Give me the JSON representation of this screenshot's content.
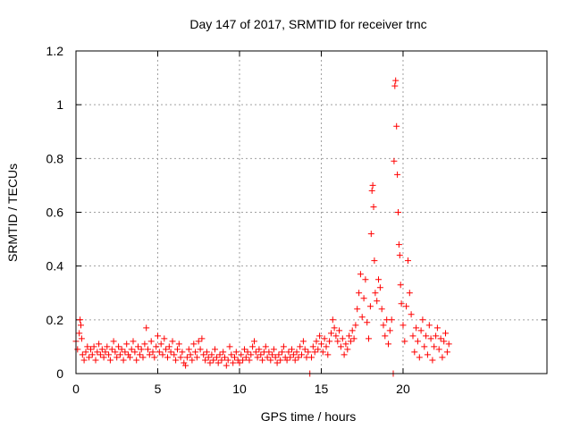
{
  "chart_data": {
    "type": "scatter",
    "title": "Day 147 of 2017, SRMTID for receiver trnc",
    "xlabel": "GPS time / hours",
    "ylabel": "SRMTID / TECUs",
    "xlim": [
      0,
      28.8
    ],
    "ylim": [
      0,
      1.2
    ],
    "xticks": [
      0,
      5,
      10,
      15,
      20
    ],
    "xtick_labels": [
      "0",
      "5",
      "10",
      "15",
      "20"
    ],
    "yticks": [
      0,
      0.2,
      0.4,
      0.6,
      0.8,
      1.0,
      1.2
    ],
    "ytick_labels": [
      "0",
      "0.2",
      "0.4",
      "0.6",
      "0.8",
      "1",
      "1.2"
    ],
    "grid": true,
    "legend": "none",
    "marker": "+",
    "color": "#ff0000",
    "series": [
      {
        "name": "SRMTID",
        "points": [
          [
            0.0,
            0.12
          ],
          [
            0.1,
            0.09
          ],
          [
            0.2,
            0.15
          ],
          [
            0.25,
            0.2
          ],
          [
            0.3,
            0.18
          ],
          [
            0.35,
            0.13
          ],
          [
            0.4,
            0.07
          ],
          [
            0.5,
            0.05
          ],
          [
            0.6,
            0.08
          ],
          [
            0.7,
            0.1
          ],
          [
            0.8,
            0.06
          ],
          [
            0.9,
            0.09
          ],
          [
            1.0,
            0.07
          ],
          [
            1.1,
            0.1
          ],
          [
            1.2,
            0.05
          ],
          [
            1.3,
            0.08
          ],
          [
            1.4,
            0.11
          ],
          [
            1.5,
            0.07
          ],
          [
            1.6,
            0.09
          ],
          [
            1.7,
            0.06
          ],
          [
            1.8,
            0.08
          ],
          [
            1.9,
            0.1
          ],
          [
            2.0,
            0.07
          ],
          [
            2.1,
            0.05
          ],
          [
            2.2,
            0.09
          ],
          [
            2.3,
            0.12
          ],
          [
            2.4,
            0.08
          ],
          [
            2.5,
            0.06
          ],
          [
            2.6,
            0.1
          ],
          [
            2.7,
            0.07
          ],
          [
            2.8,
            0.09
          ],
          [
            2.9,
            0.05
          ],
          [
            3.0,
            0.08
          ],
          [
            3.1,
            0.11
          ],
          [
            3.2,
            0.07
          ],
          [
            3.3,
            0.06
          ],
          [
            3.4,
            0.09
          ],
          [
            3.5,
            0.12
          ],
          [
            3.6,
            0.08
          ],
          [
            3.7,
            0.05
          ],
          [
            3.8,
            0.1
          ],
          [
            3.9,
            0.07
          ],
          [
            4.0,
            0.09
          ],
          [
            4.1,
            0.06
          ],
          [
            4.2,
            0.11
          ],
          [
            4.3,
            0.17
          ],
          [
            4.4,
            0.09
          ],
          [
            4.5,
            0.07
          ],
          [
            4.6,
            0.12
          ],
          [
            4.7,
            0.08
          ],
          [
            4.8,
            0.06
          ],
          [
            4.9,
            0.1
          ],
          [
            5.0,
            0.14
          ],
          [
            5.1,
            0.08
          ],
          [
            5.2,
            0.11
          ],
          [
            5.3,
            0.07
          ],
          [
            5.4,
            0.13
          ],
          [
            5.5,
            0.09
          ],
          [
            5.6,
            0.06
          ],
          [
            5.7,
            0.1
          ],
          [
            5.8,
            0.08
          ],
          [
            5.9,
            0.12
          ],
          [
            6.0,
            0.07
          ],
          [
            6.1,
            0.05
          ],
          [
            6.2,
            0.09
          ],
          [
            6.3,
            0.11
          ],
          [
            6.4,
            0.06
          ],
          [
            6.5,
            0.08
          ],
          [
            6.6,
            0.04
          ],
          [
            6.7,
            0.03
          ],
          [
            6.8,
            0.06
          ],
          [
            6.9,
            0.09
          ],
          [
            7.0,
            0.07
          ],
          [
            7.1,
            0.05
          ],
          [
            7.2,
            0.11
          ],
          [
            7.3,
            0.08
          ],
          [
            7.4,
            0.06
          ],
          [
            7.5,
            0.12
          ],
          [
            7.6,
            0.09
          ],
          [
            7.7,
            0.13
          ],
          [
            7.8,
            0.07
          ],
          [
            7.9,
            0.05
          ],
          [
            8.0,
            0.08
          ],
          [
            8.1,
            0.06
          ],
          [
            8.2,
            0.04
          ],
          [
            8.3,
            0.07
          ],
          [
            8.4,
            0.05
          ],
          [
            8.5,
            0.09
          ],
          [
            8.6,
            0.06
          ],
          [
            8.7,
            0.04
          ],
          [
            8.8,
            0.07
          ],
          [
            8.9,
            0.05
          ],
          [
            9.0,
            0.08
          ],
          [
            9.1,
            0.06
          ],
          [
            9.2,
            0.03
          ],
          [
            9.3,
            0.05
          ],
          [
            9.4,
            0.1
          ],
          [
            9.5,
            0.07
          ],
          [
            9.6,
            0.04
          ],
          [
            9.7,
            0.06
          ],
          [
            9.8,
            0.08
          ],
          [
            9.9,
            0.05
          ],
          [
            10.0,
            0.04
          ],
          [
            10.1,
            0.07
          ],
          [
            10.2,
            0.05
          ],
          [
            10.3,
            0.09
          ],
          [
            10.4,
            0.06
          ],
          [
            10.5,
            0.08
          ],
          [
            10.6,
            0.05
          ],
          [
            10.7,
            0.07
          ],
          [
            10.8,
            0.1
          ],
          [
            10.9,
            0.12
          ],
          [
            11.0,
            0.08
          ],
          [
            11.1,
            0.06
          ],
          [
            11.2,
            0.09
          ],
          [
            11.3,
            0.07
          ],
          [
            11.4,
            0.05
          ],
          [
            11.5,
            0.08
          ],
          [
            11.6,
            0.1
          ],
          [
            11.7,
            0.06
          ],
          [
            11.8,
            0.08
          ],
          [
            11.9,
            0.05
          ],
          [
            12.0,
            0.07
          ],
          [
            12.1,
            0.09
          ],
          [
            12.2,
            0.06
          ],
          [
            12.3,
            0.04
          ],
          [
            12.4,
            0.07
          ],
          [
            12.5,
            0.05
          ],
          [
            12.6,
            0.08
          ],
          [
            12.7,
            0.1
          ],
          [
            12.8,
            0.06
          ],
          [
            12.9,
            0.05
          ],
          [
            13.0,
            0.08
          ],
          [
            13.1,
            0.06
          ],
          [
            13.2,
            0.09
          ],
          [
            13.3,
            0.07
          ],
          [
            13.4,
            0.05
          ],
          [
            13.5,
            0.08
          ],
          [
            13.6,
            0.06
          ],
          [
            13.7,
            0.1
          ],
          [
            13.8,
            0.07
          ],
          [
            13.9,
            0.12
          ],
          [
            14.0,
            0.09
          ],
          [
            14.1,
            0.06
          ],
          [
            14.2,
            0.08
          ],
          [
            14.3,
            0.0
          ],
          [
            14.4,
            0.06
          ],
          [
            14.5,
            0.1
          ],
          [
            14.6,
            0.08
          ],
          [
            14.7,
            0.12
          ],
          [
            14.8,
            0.09
          ],
          [
            14.9,
            0.14
          ],
          [
            15.0,
            0.11
          ],
          [
            15.1,
            0.08
          ],
          [
            15.2,
            0.13
          ],
          [
            15.3,
            0.1
          ],
          [
            15.4,
            0.07
          ],
          [
            15.5,
            0.12
          ],
          [
            15.6,
            0.15
          ],
          [
            15.7,
            0.2
          ],
          [
            15.8,
            0.17
          ],
          [
            15.9,
            0.14
          ],
          [
            16.0,
            0.12
          ],
          [
            16.1,
            0.16
          ],
          [
            16.2,
            0.1
          ],
          [
            16.3,
            0.13
          ],
          [
            16.4,
            0.07
          ],
          [
            16.5,
            0.11
          ],
          [
            16.6,
            0.09
          ],
          [
            16.7,
            0.14
          ],
          [
            16.8,
            0.12
          ],
          [
            16.9,
            0.16
          ],
          [
            17.0,
            0.13
          ],
          [
            17.1,
            0.18
          ],
          [
            17.2,
            0.24
          ],
          [
            17.3,
            0.3
          ],
          [
            17.4,
            0.37
          ],
          [
            17.5,
            0.21
          ],
          [
            17.6,
            0.28
          ],
          [
            17.7,
            0.35
          ],
          [
            17.8,
            0.19
          ],
          [
            17.9,
            0.13
          ],
          [
            18.0,
            0.25
          ],
          [
            18.05,
            0.52
          ],
          [
            18.1,
            0.68
          ],
          [
            18.15,
            0.7
          ],
          [
            18.2,
            0.62
          ],
          [
            18.25,
            0.42
          ],
          [
            18.3,
            0.3
          ],
          [
            18.4,
            0.27
          ],
          [
            18.5,
            0.35
          ],
          [
            18.6,
            0.32
          ],
          [
            18.7,
            0.24
          ],
          [
            18.8,
            0.18
          ],
          [
            18.9,
            0.14
          ],
          [
            19.0,
            0.2
          ],
          [
            19.1,
            0.11
          ],
          [
            19.2,
            0.16
          ],
          [
            19.3,
            0.2
          ],
          [
            19.4,
            0.0
          ],
          [
            19.45,
            0.79
          ],
          [
            19.5,
            1.07
          ],
          [
            19.55,
            1.09
          ],
          [
            19.6,
            0.92
          ],
          [
            19.65,
            0.74
          ],
          [
            19.7,
            0.6
          ],
          [
            19.75,
            0.48
          ],
          [
            19.8,
            0.44
          ],
          [
            19.85,
            0.33
          ],
          [
            19.9,
            0.26
          ],
          [
            20.0,
            0.18
          ],
          [
            20.1,
            0.12
          ],
          [
            20.2,
            0.25
          ],
          [
            20.3,
            0.42
          ],
          [
            20.4,
            0.3
          ],
          [
            20.5,
            0.22
          ],
          [
            20.6,
            0.14
          ],
          [
            20.7,
            0.08
          ],
          [
            20.8,
            0.17
          ],
          [
            20.9,
            0.12
          ],
          [
            21.0,
            0.06
          ],
          [
            21.1,
            0.16
          ],
          [
            21.2,
            0.2
          ],
          [
            21.3,
            0.1
          ],
          [
            21.4,
            0.14
          ],
          [
            21.5,
            0.07
          ],
          [
            21.6,
            0.18
          ],
          [
            21.7,
            0.13
          ],
          [
            21.8,
            0.05
          ],
          [
            21.9,
            0.1
          ],
          [
            22.0,
            0.14
          ],
          [
            22.1,
            0.17
          ],
          [
            22.2,
            0.09
          ],
          [
            22.3,
            0.13
          ],
          [
            22.4,
            0.06
          ],
          [
            22.5,
            0.12
          ],
          [
            22.6,
            0.15
          ],
          [
            22.7,
            0.08
          ],
          [
            22.8,
            0.11
          ]
        ]
      }
    ]
  }
}
